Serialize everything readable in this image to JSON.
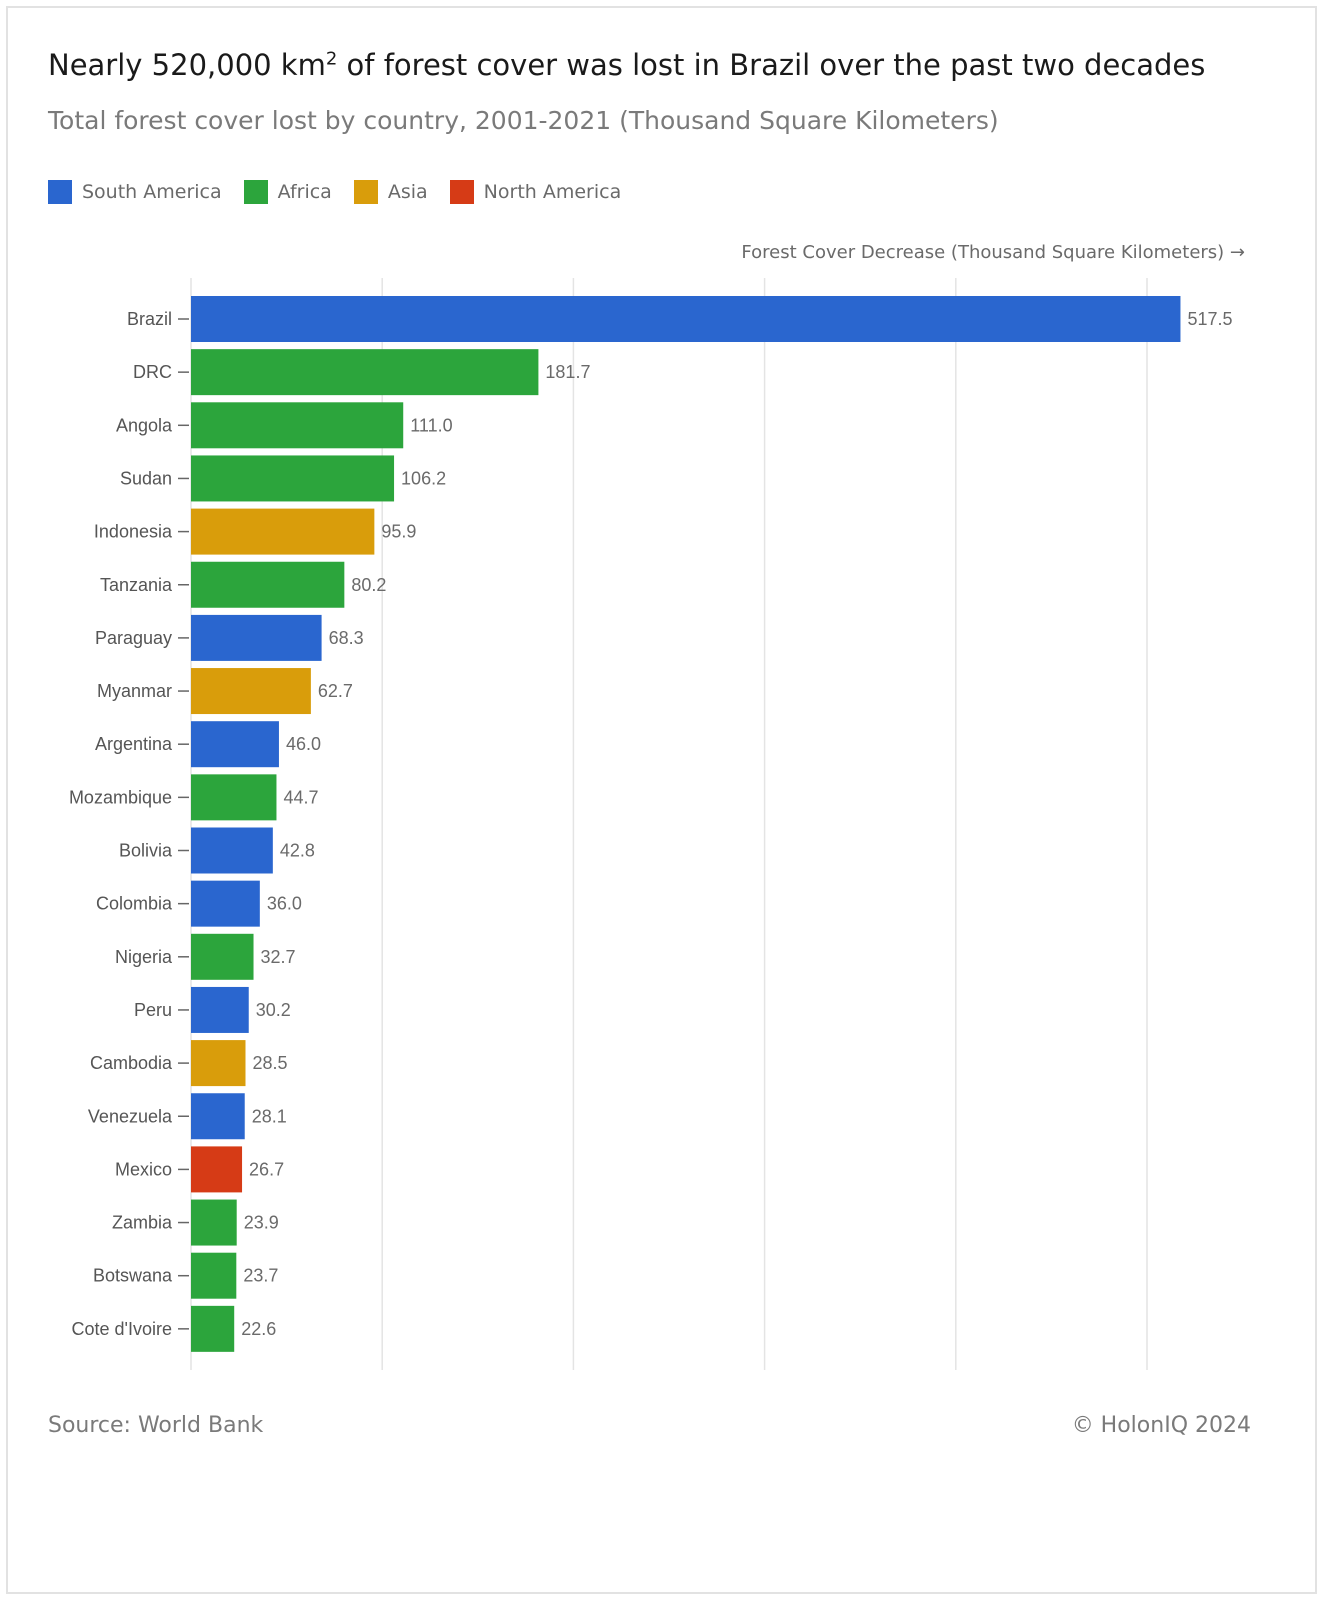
{
  "header": {
    "title_pre": "Nearly 520,000 km",
    "title_sup": "2",
    "title_post": " of forest cover was lost in Brazil over the past two decades",
    "subtitle": "Total forest cover lost by country, 2001-2021 (Thousand Square Kilometers)"
  },
  "legend": [
    {
      "label": "South America",
      "color": "#2a66cf"
    },
    {
      "label": "Africa",
      "color": "#2ca53c"
    },
    {
      "label": "Asia",
      "color": "#d99d0b"
    },
    {
      "label": "North America",
      "color": "#d63b16"
    }
  ],
  "footer": {
    "source": "Source: World Bank",
    "copyright": "© HolonIQ 2024"
  },
  "chart_data": {
    "type": "bar",
    "orientation": "horizontal",
    "title": "Nearly 520,000 km² of forest cover was lost in Brazil over the past two decades",
    "subtitle": "Total forest cover lost by country, 2001-2021 (Thousand Square Kilometers)",
    "xlabel": "Forest Cover Decrease (Thousand Square Kilometers) →",
    "xlim": [
      0,
      550
    ],
    "x_gridlines": [
      0,
      100,
      200,
      300,
      400,
      500
    ],
    "grid": true,
    "legend_placement": "top-left",
    "categories": [
      "Brazil",
      "DRC",
      "Angola",
      "Sudan",
      "Indonesia",
      "Tanzania",
      "Paraguay",
      "Myanmar",
      "Argentina",
      "Mozambique",
      "Bolivia",
      "Colombia",
      "Nigeria",
      "Peru",
      "Cambodia",
      "Venezuela",
      "Mexico",
      "Zambia",
      "Botswana",
      "Cote d'Ivoire"
    ],
    "values": [
      517.5,
      181.7,
      111.0,
      106.2,
      95.9,
      80.2,
      68.3,
      62.7,
      46.0,
      44.7,
      42.8,
      36.0,
      32.7,
      30.2,
      28.5,
      28.1,
      26.7,
      23.9,
      23.7,
      22.6
    ],
    "value_labels": [
      "517.5",
      "181.7",
      "111.0",
      "106.2",
      "95.9",
      "80.2",
      "68.3",
      "62.7",
      "46.0",
      "44.7",
      "42.8",
      "36.0",
      "32.7",
      "30.2",
      "28.5",
      "28.1",
      "26.7",
      "23.9",
      "23.7",
      "22.6"
    ],
    "regions": [
      "South America",
      "Africa",
      "Africa",
      "Africa",
      "Asia",
      "Africa",
      "South America",
      "Asia",
      "South America",
      "Africa",
      "South America",
      "South America",
      "Africa",
      "South America",
      "Asia",
      "South America",
      "North America",
      "Africa",
      "Africa",
      "Africa"
    ]
  }
}
